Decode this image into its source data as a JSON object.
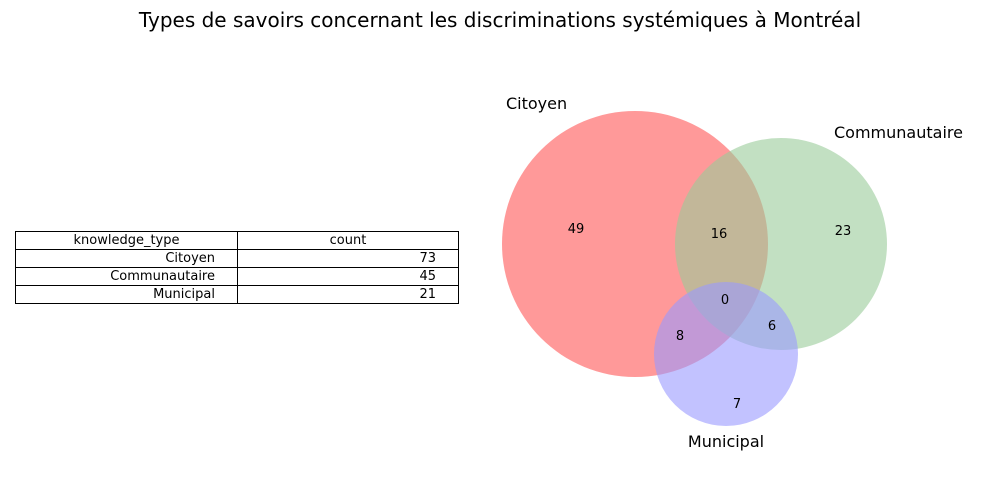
{
  "title": "Types de savoirs concernant les discriminations systémiques à Montréal",
  "table": {
    "headers": [
      "knowledge_type",
      "count"
    ],
    "rows": [
      [
        "Citoyen",
        "73"
      ],
      [
        "Communautaire",
        "45"
      ],
      [
        "Municipal",
        "21"
      ]
    ]
  },
  "chart_data": {
    "type": "venn",
    "title": "Types de savoirs concernant les discriminations systémiques à Montréal",
    "sets": [
      {
        "name": "Citoyen",
        "color": "#ff9999"
      },
      {
        "name": "Communautaire",
        "color": "#99cc99"
      },
      {
        "name": "Municipal",
        "color": "#9999ff"
      }
    ],
    "regions": [
      {
        "sets": [
          "Citoyen"
        ],
        "value": 49
      },
      {
        "sets": [
          "Communautaire"
        ],
        "value": 23
      },
      {
        "sets": [
          "Municipal"
        ],
        "value": 7
      },
      {
        "sets": [
          "Citoyen",
          "Communautaire"
        ],
        "value": 16
      },
      {
        "sets": [
          "Citoyen",
          "Municipal"
        ],
        "value": 8
      },
      {
        "sets": [
          "Communautaire",
          "Municipal"
        ],
        "value": 6
      },
      {
        "sets": [
          "Citoyen",
          "Communautaire",
          "Municipal"
        ],
        "value": 0
      }
    ]
  }
}
